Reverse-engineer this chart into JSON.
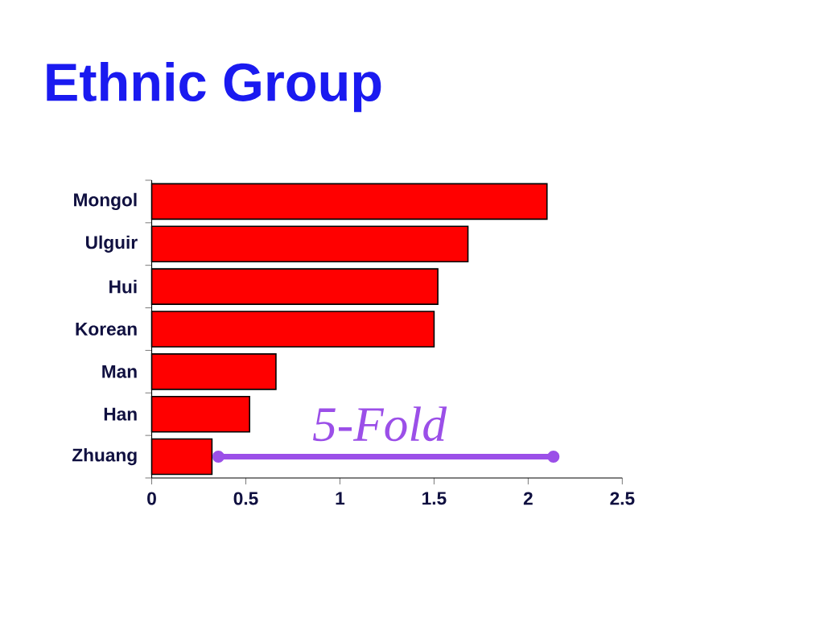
{
  "chart_data": {
    "type": "bar",
    "orientation": "horizontal",
    "title": "Ethnic Group",
    "categories": [
      "Mongol",
      "Ulguir",
      "Hui",
      "Korean",
      "Man",
      "Han",
      "Zhuang"
    ],
    "values": [
      2.1,
      1.68,
      1.52,
      1.5,
      0.66,
      0.52,
      0.32
    ],
    "color": "#ff0000",
    "xlim": [
      0,
      2.5
    ],
    "xticks": [
      0,
      0.5,
      1,
      1.5,
      2,
      2.5
    ],
    "annotations": [
      "5-Fold"
    ]
  }
}
